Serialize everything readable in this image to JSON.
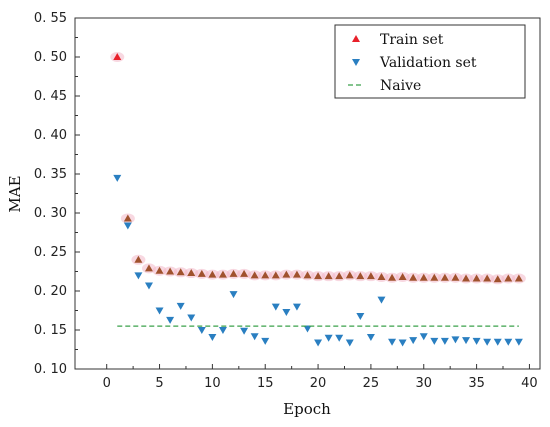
{
  "chart_data": {
    "type": "scatter",
    "xlabel": "Epoch",
    "ylabel": "MAE",
    "xlim": [
      -3,
      41
    ],
    "ylim": [
      0.1,
      0.55
    ],
    "x_ticks": [
      0,
      5,
      10,
      15,
      20,
      25,
      30,
      35,
      40
    ],
    "y_ticks": [
      0.1,
      0.15,
      0.2,
      0.25,
      0.3,
      0.35,
      0.4,
      0.45,
      0.5,
      0.55
    ],
    "y_tick_labels": [
      "0. 10",
      "0. 15",
      "0. 20",
      "0. 25",
      "0. 30",
      "0. 35",
      "0. 40",
      "0. 45",
      "0. 50",
      "0. 55"
    ],
    "grid": false,
    "legend_position": "top-right",
    "series": [
      {
        "name": "Train set",
        "marker": "triangle-up",
        "color": "#e8202a",
        "x": [
          1,
          2,
          3,
          4,
          5,
          6,
          7,
          8,
          9,
          10,
          11,
          12,
          13,
          14,
          15,
          16,
          17,
          18,
          19,
          20,
          21,
          22,
          23,
          24,
          25,
          26,
          27,
          28,
          29,
          30,
          31,
          32,
          33,
          34,
          35,
          36,
          37,
          38,
          39
        ],
        "values": [
          0.5,
          0.293,
          0.24,
          0.229,
          0.226,
          0.225,
          0.224,
          0.223,
          0.222,
          0.221,
          0.221,
          0.222,
          0.222,
          0.22,
          0.22,
          0.22,
          0.221,
          0.221,
          0.22,
          0.219,
          0.219,
          0.219,
          0.22,
          0.219,
          0.219,
          0.218,
          0.217,
          0.218,
          0.217,
          0.217,
          0.217,
          0.217,
          0.217,
          0.216,
          0.216,
          0.216,
          0.215,
          0.216,
          0.216
        ]
      },
      {
        "name": "Validation set",
        "marker": "triangle-down",
        "color": "#2a7fc1",
        "x": [
          1,
          2,
          3,
          4,
          5,
          6,
          7,
          8,
          9,
          10,
          11,
          12,
          13,
          14,
          15,
          16,
          17,
          18,
          19,
          20,
          21,
          22,
          23,
          24,
          25,
          26,
          27,
          28,
          29,
          30,
          31,
          32,
          33,
          34,
          35,
          36,
          37,
          38,
          39
        ],
        "values": [
          0.345,
          0.284,
          0.22,
          0.207,
          0.175,
          0.163,
          0.181,
          0.166,
          0.15,
          0.141,
          0.15,
          0.196,
          0.149,
          0.142,
          0.136,
          0.18,
          0.173,
          0.18,
          0.152,
          0.134,
          0.14,
          0.14,
          0.134,
          0.168,
          0.141,
          0.189,
          0.135,
          0.134,
          0.137,
          0.142,
          0.136,
          0.136,
          0.138,
          0.137,
          0.136,
          0.135,
          0.135,
          0.135,
          0.135
        ]
      },
      {
        "name": "Naive",
        "type": "line",
        "style": "dashed",
        "color": "#3aa14a",
        "x": [
          1,
          39
        ],
        "values": [
          0.155,
          0.155
        ]
      }
    ]
  }
}
